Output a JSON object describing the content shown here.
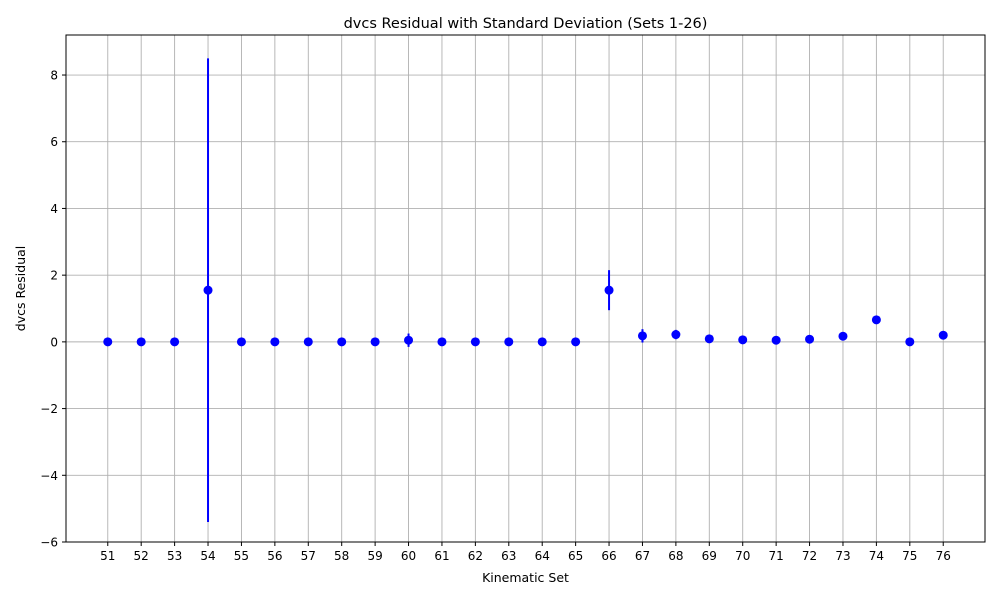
{
  "chart_data": {
    "type": "scatter",
    "title": "dvcs Residual with Standard Deviation (Sets 1-26)",
    "xlabel": "Kinematic Set",
    "ylabel": "dvcs Residual",
    "x": [
      51,
      52,
      53,
      54,
      55,
      56,
      57,
      58,
      59,
      60,
      61,
      62,
      63,
      64,
      65,
      66,
      67,
      68,
      69,
      70,
      71,
      72,
      73,
      74,
      75,
      76
    ],
    "y": [
      0.0,
      0.0,
      0.0,
      1.55,
      0.0,
      0.0,
      0.0,
      0.0,
      0.0,
      0.05,
      0.0,
      0.0,
      0.0,
      0.0,
      0.0,
      1.55,
      0.18,
      0.22,
      0.09,
      0.06,
      0.05,
      0.08,
      0.17,
      0.66,
      0.0,
      0.2
    ],
    "yerr": [
      0.02,
      0.02,
      0.02,
      6.95,
      0.02,
      0.02,
      0.02,
      0.02,
      0.05,
      0.2,
      0.02,
      0.02,
      0.02,
      0.04,
      0.12,
      0.6,
      0.2,
      0.14,
      0.06,
      0.03,
      0.02,
      0.04,
      0.04,
      0.1,
      0.03,
      0.04
    ],
    "xlim": [
      49.75,
      77.25
    ],
    "ylim": [
      -6.0,
      9.2
    ],
    "yticks": [
      -6,
      -4,
      -2,
      0,
      2,
      4,
      6,
      8
    ],
    "yticklabels": [
      "−6",
      "−4",
      "−2",
      "0",
      "2",
      "4",
      "6",
      "8"
    ],
    "grid": true,
    "color": "#0000ff"
  }
}
